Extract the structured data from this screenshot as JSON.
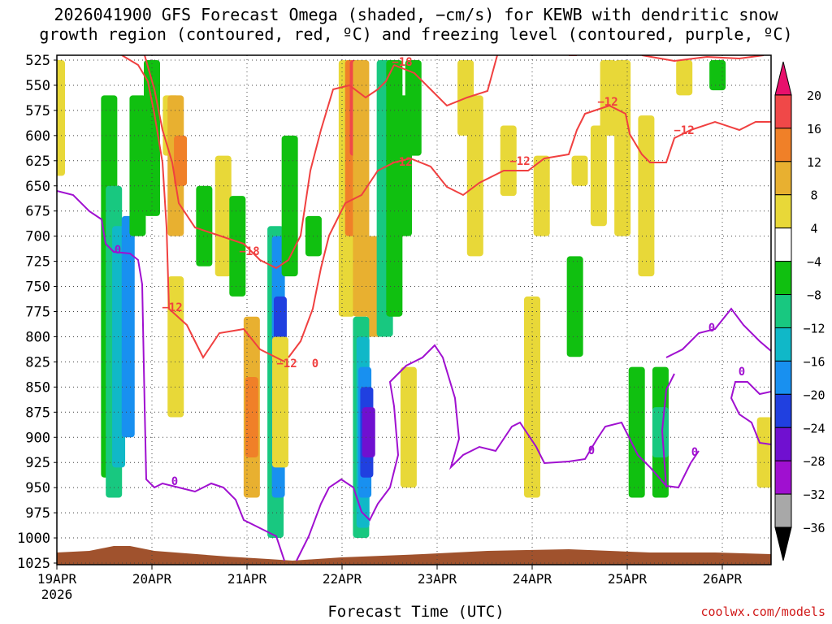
{
  "title_line1": "2026041900 GFS Forecast Omega (shaded, −cm/s) for KEWB with dendritic snow",
  "title_line2": "growth region (contoured, red, ºC) and freezing level (contoured, purple, ºC)",
  "credit": "coolwx.com/models",
  "chart_data": {
    "type": "heatmap",
    "xlabel": "Forecast Time (UTC)",
    "ylabel": "",
    "x_ticks": [
      "19APR",
      "20APR",
      "21APR",
      "22APR",
      "23APR",
      "24APR",
      "25APR",
      "26APR"
    ],
    "x_year": "2026",
    "y_ticks": [
      525,
      550,
      575,
      600,
      625,
      650,
      675,
      700,
      725,
      750,
      775,
      800,
      825,
      850,
      875,
      900,
      925,
      950,
      975,
      1000,
      1025
    ],
    "ylim": [
      525,
      1025
    ],
    "xlim_days": [
      0,
      7.5
    ],
    "grid": "dotted",
    "colorbar": {
      "labels": [
        "20",
        "16",
        "12",
        "8",
        "4",
        "−4",
        "−8",
        "−12",
        "−16",
        "−20",
        "−24",
        "−28",
        "−32",
        "−36"
      ],
      "colors": [
        "#e8106c",
        "#f04848",
        "#f08028",
        "#e8b030",
        "#e8d838",
        "#ffffff",
        "#10c010",
        "#18c880",
        "#10b8c8",
        "#1890f0",
        "#2040e0",
        "#7010d0",
        "#a010d0",
        "#a8a8a8",
        "#000000"
      ]
    },
    "omega_cells": [
      {
        "x": 0.0,
        "p": [
          525,
          640
        ],
        "v": 4
      },
      {
        "x": 0.55,
        "p": [
          560,
          940
        ],
        "v": -4
      },
      {
        "x": 0.6,
        "p": [
          650,
          960
        ],
        "v": -8
      },
      {
        "x": 0.65,
        "p": [
          690,
          930
        ],
        "v": -12
      },
      {
        "x": 0.75,
        "p": [
          680,
          900
        ],
        "v": -16
      },
      {
        "x": 0.85,
        "p": [
          560,
          700
        ],
        "v": -4
      },
      {
        "x": 1.0,
        "p": [
          525,
          680
        ],
        "v": -4
      },
      {
        "x": 1.2,
        "p": [
          560,
          620
        ],
        "v": 4
      },
      {
        "x": 1.25,
        "p": [
          560,
          700
        ],
        "v": 8
      },
      {
        "x": 1.3,
        "p": [
          600,
          650
        ],
        "v": 12
      },
      {
        "x": 1.25,
        "p": [
          740,
          880
        ],
        "v": 4
      },
      {
        "x": 1.55,
        "p": [
          650,
          730
        ],
        "v": -4
      },
      {
        "x": 1.75,
        "p": [
          620,
          740
        ],
        "v": 4
      },
      {
        "x": 1.9,
        "p": [
          660,
          760
        ],
        "v": -4
      },
      {
        "x": 2.05,
        "p": [
          780,
          960
        ],
        "v": 8
      },
      {
        "x": 2.05,
        "p": [
          840,
          920
        ],
        "v": 12
      },
      {
        "x": 2.3,
        "p": [
          690,
          1000
        ],
        "v": -8
      },
      {
        "x": 2.33,
        "p": [
          700,
          960
        ],
        "v": -16
      },
      {
        "x": 2.35,
        "p": [
          760,
          900
        ],
        "v": -20
      },
      {
        "x": 2.45,
        "p": [
          600,
          740
        ],
        "v": -4
      },
      {
        "x": 2.7,
        "p": [
          680,
          720
        ],
        "v": -4
      },
      {
        "x": 2.35,
        "p": [
          800,
          930
        ],
        "v": 4
      },
      {
        "x": 3.05,
        "p": [
          525,
          780
        ],
        "v": 4
      },
      {
        "x": 3.1,
        "p": [
          525,
          700
        ],
        "v": 12
      },
      {
        "x": 3.15,
        "p": [
          525,
          620
        ],
        "v": 16
      },
      {
        "x": 3.2,
        "p": [
          525,
          780
        ],
        "v": 8
      },
      {
        "x": 3.35,
        "p": [
          700,
          800
        ],
        "v": 8
      },
      {
        "x": 3.45,
        "p": [
          525,
          800
        ],
        "v": -8
      },
      {
        "x": 3.55,
        "p": [
          525,
          780
        ],
        "v": -4
      },
      {
        "x": 3.65,
        "p": [
          560,
          700
        ],
        "v": -4
      },
      {
        "x": 3.75,
        "p": [
          525,
          620
        ],
        "v": -4
      },
      {
        "x": 3.2,
        "p": [
          780,
          1000
        ],
        "v": -8
      },
      {
        "x": 3.22,
        "p": [
          800,
          990
        ],
        "v": -12
      },
      {
        "x": 3.24,
        "p": [
          830,
          960
        ],
        "v": -16
      },
      {
        "x": 3.26,
        "p": [
          850,
          940
        ],
        "v": -20
      },
      {
        "x": 3.28,
        "p": [
          870,
          920
        ],
        "v": -24
      },
      {
        "x": 3.7,
        "p": [
          830,
          950
        ],
        "v": 4
      },
      {
        "x": 4.3,
        "p": [
          525,
          600
        ],
        "v": 4
      },
      {
        "x": 4.4,
        "p": [
          560,
          720
        ],
        "v": 4
      },
      {
        "x": 4.75,
        "p": [
          590,
          660
        ],
        "v": 4
      },
      {
        "x": 5.1,
        "p": [
          620,
          700
        ],
        "v": 4
      },
      {
        "x": 5.5,
        "p": [
          620,
          650
        ],
        "v": 4
      },
      {
        "x": 5.45,
        "p": [
          720,
          820
        ],
        "v": -4
      },
      {
        "x": 5.0,
        "p": [
          760,
          960
        ],
        "v": 4
      },
      {
        "x": 5.7,
        "p": [
          590,
          690
        ],
        "v": 4
      },
      {
        "x": 5.8,
        "p": [
          525,
          600
        ],
        "v": 4
      },
      {
        "x": 5.95,
        "p": [
          525,
          700
        ],
        "v": 4
      },
      {
        "x": 6.2,
        "p": [
          580,
          740
        ],
        "v": 4
      },
      {
        "x": 6.1,
        "p": [
          830,
          960
        ],
        "v": -4
      },
      {
        "x": 6.35,
        "p": [
          830,
          960
        ],
        "v": -4
      },
      {
        "x": 6.35,
        "p": [
          870,
          920
        ],
        "v": -8
      },
      {
        "x": 6.6,
        "p": [
          525,
          560
        ],
        "v": 4
      },
      {
        "x": 6.95,
        "p": [
          525,
          555
        ],
        "v": -4
      },
      {
        "x": 7.45,
        "p": [
          880,
          950
        ],
        "v": 4
      },
      {
        "x": 7.5,
        "p": [
          880,
          940
        ],
        "v": 4
      }
    ],
    "red_contours": [
      {
        "label": "−12",
        "points": [
          [
            0.2,
            650
          ],
          [
            1.4,
            525
          ]
        ]
      },
      {
        "label": "−18",
        "points": [
          [
            2.0,
            670
          ],
          [
            3.6,
            525
          ]
        ]
      },
      {
        "label": "−12",
        "points": [
          [
            1.6,
            720
          ],
          [
            3.3,
            590
          ]
        ]
      },
      {
        "label": "−12",
        "points": [
          [
            3.6,
            600
          ],
          [
            5.0,
            600
          ]
        ]
      },
      {
        "label": "−12",
        "points": [
          [
            5.0,
            550
          ],
          [
            6.0,
            550
          ]
        ]
      },
      {
        "label": "−12",
        "points": [
          [
            6.0,
            570
          ],
          [
            7.5,
            570
          ]
        ]
      },
      {
        "label": "−12",
        "points": [
          [
            2.0,
            750
          ],
          [
            3.0,
            780
          ]
        ]
      },
      {
        "label": "0",
        "points": [
          [
            3.0,
            790
          ],
          [
            3.1,
            790
          ]
        ]
      }
    ],
    "purple_contours": [
      {
        "label": "0",
        "points": [
          [
            0.0,
            625
          ],
          [
            1.2,
            920
          ]
        ]
      },
      {
        "label": "0",
        "points": [
          [
            1.3,
            925
          ],
          [
            3.2,
            950
          ]
        ]
      },
      {
        "label": "0",
        "points": [
          [
            3.3,
            800
          ],
          [
            4.2,
            890
          ]
        ]
      },
      {
        "label": "0",
        "points": [
          [
            4.2,
            870
          ],
          [
            5.8,
            900
          ]
        ]
      },
      {
        "label": "0",
        "points": [
          [
            5.9,
            750
          ],
          [
            7.5,
            800
          ]
        ]
      },
      {
        "label": "0",
        "points": [
          [
            6.4,
            800
          ],
          [
            7.5,
            880
          ]
        ]
      }
    ],
    "terrain_color": "#a0522d"
  }
}
